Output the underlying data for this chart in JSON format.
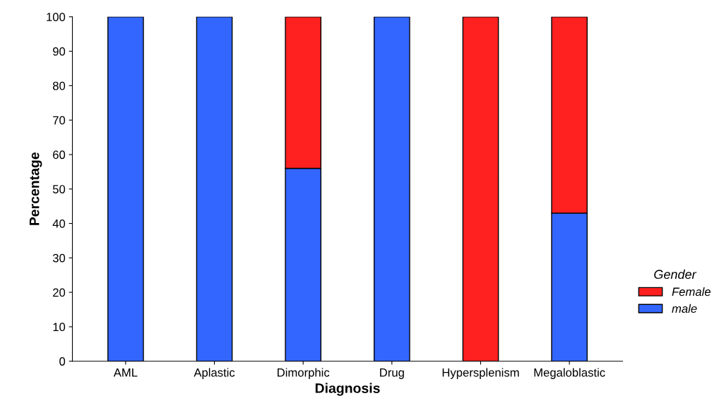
{
  "chart_data": {
    "type": "bar",
    "stacked": true,
    "xlabel": "Diagnosis",
    "ylabel": "Percentage",
    "legend_title": "Gender",
    "legend": "right",
    "categories": [
      "AML",
      "Aplastic",
      "Dimorphic",
      "Drug",
      "Hypersplenism",
      "Megaloblastic"
    ],
    "series": [
      {
        "name": "male",
        "color": "#3366ff",
        "values": [
          100,
          100,
          56,
          100,
          0,
          43
        ]
      },
      {
        "name": "Female",
        "color": "#ff2020",
        "values": [
          0,
          0,
          44,
          0,
          100,
          57
        ]
      }
    ],
    "ylim": [
      0,
      100
    ],
    "yticks": [
      0,
      10,
      20,
      30,
      40,
      50,
      60,
      70,
      80,
      90,
      100
    ],
    "grid": false
  }
}
